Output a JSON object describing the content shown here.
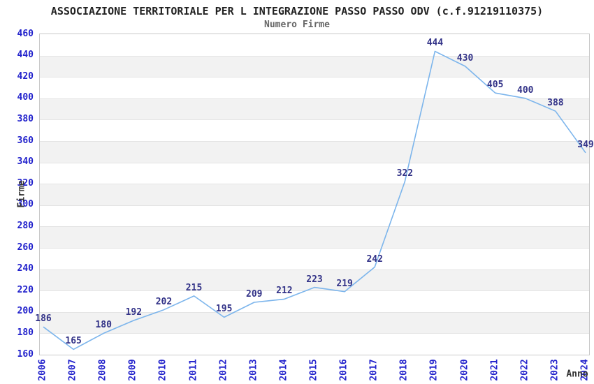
{
  "chart_data": {
    "type": "line",
    "title": "ASSOCIAZIONE TERRITORIALE PER L INTEGRAZIONE PASSO PASSO ODV (c.f.91219110375)",
    "subtitle": "Numero Firme",
    "xlabel": "Anno",
    "ylabel": "Firme",
    "categories": [
      "2006",
      "2007",
      "2008",
      "2009",
      "2010",
      "2011",
      "2012",
      "2013",
      "2014",
      "2015",
      "2016",
      "2017",
      "2018",
      "2019",
      "2020",
      "2021",
      "2022",
      "2023",
      "2024"
    ],
    "series": [
      {
        "name": "Numero Firme",
        "values": [
          186,
          165,
          180,
          192,
          202,
          215,
          195,
          209,
          212,
          223,
          219,
          242,
          322,
          444,
          430,
          405,
          400,
          388,
          349
        ]
      }
    ],
    "ylim": [
      160,
      460
    ],
    "ytick_step": 20,
    "grid": "horizontal alternating bands",
    "legend": "none",
    "colors": {
      "line": "#7cb5ec",
      "data_label": "#333388",
      "tick_label": "#2222cc",
      "band_gray": "#f2f2f2",
      "band_white": "#ffffff",
      "grid_line": "#e4e4e4",
      "plot_border": "#c9c9c9",
      "title": "#222222",
      "subtitle": "#666666",
      "axis_title": "#333333"
    }
  }
}
